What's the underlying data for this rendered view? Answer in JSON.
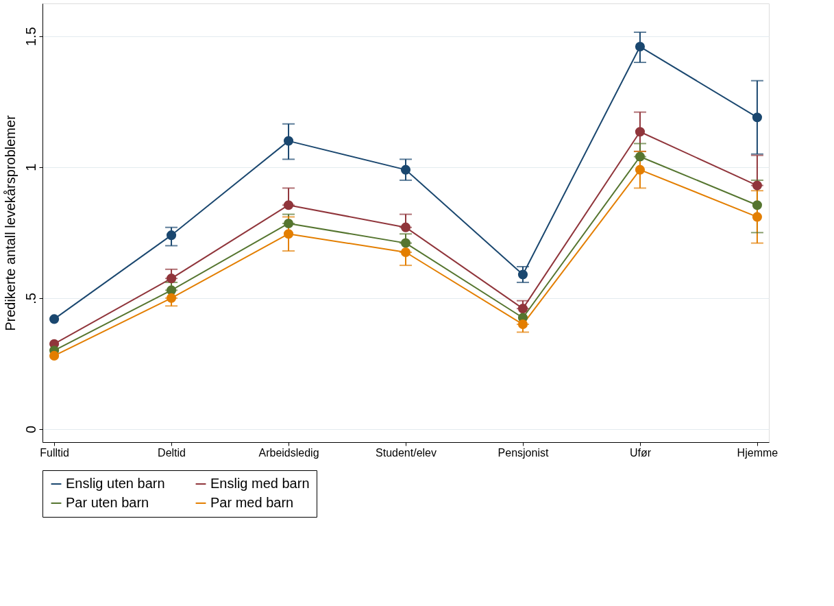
{
  "chart_data": {
    "type": "line",
    "ylabel": "Predikerte antall levekårsproblemer",
    "categories": [
      "Fulltid",
      "Deltid",
      "Arbeidsledig",
      "Student/elev",
      "Pensjonist",
      "Ufør",
      "Hjemme"
    ],
    "series": [
      {
        "name": "Enslig uten barn",
        "color": "#1a476f",
        "values": [
          0.42,
          0.74,
          1.1,
          0.99,
          0.59,
          1.46,
          1.19
        ],
        "errors": [
          null,
          [
            0.7,
            0.77
          ],
          [
            1.03,
            1.165
          ],
          [
            0.95,
            1.03
          ],
          [
            0.56,
            0.62
          ],
          [
            1.4,
            1.515
          ],
          [
            1.05,
            1.33
          ]
        ]
      },
      {
        "name": "Enslig med barn",
        "color": "#90353b",
        "values": [
          0.325,
          0.575,
          0.855,
          0.77,
          0.46,
          1.135,
          0.93
        ],
        "errors": [
          null,
          [
            0.575,
            0.61
          ],
          [
            0.855,
            0.92
          ],
          [
            0.77,
            0.82
          ],
          [
            0.46,
            0.49
          ],
          [
            1.06,
            1.21
          ],
          [
            0.93,
            1.045
          ]
        ]
      },
      {
        "name": "Par uten barn",
        "color": "#55752f",
        "values": [
          0.3,
          0.53,
          0.785,
          0.71,
          0.425,
          1.04,
          0.855
        ],
        "errors": [
          null,
          [
            0.53,
            0.56
          ],
          [
            0.785,
            0.82
          ],
          [
            0.71,
            0.745
          ],
          null,
          [
            1.04,
            1.09
          ],
          [
            0.75,
            0.95
          ]
        ]
      },
      {
        "name": "Par med barn",
        "color": "#e37e00",
        "values": [
          0.28,
          0.5,
          0.745,
          0.675,
          0.4,
          0.99,
          0.81
        ],
        "errors": [
          null,
          [
            0.47,
            0.5
          ],
          [
            0.68,
            0.81
          ],
          [
            0.625,
            0.675
          ],
          [
            0.37,
            0.4
          ],
          [
            0.92,
            1.06
          ],
          [
            0.71,
            0.91
          ]
        ]
      }
    ],
    "ylim": [
      -0.05,
      1.625
    ],
    "yticks": [
      0,
      {
        "value": 0.5,
        "label": ".5"
      },
      1,
      1.5
    ],
    "grid": "y",
    "legend": "bottom",
    "marker": "circle",
    "line_style": "solid"
  }
}
